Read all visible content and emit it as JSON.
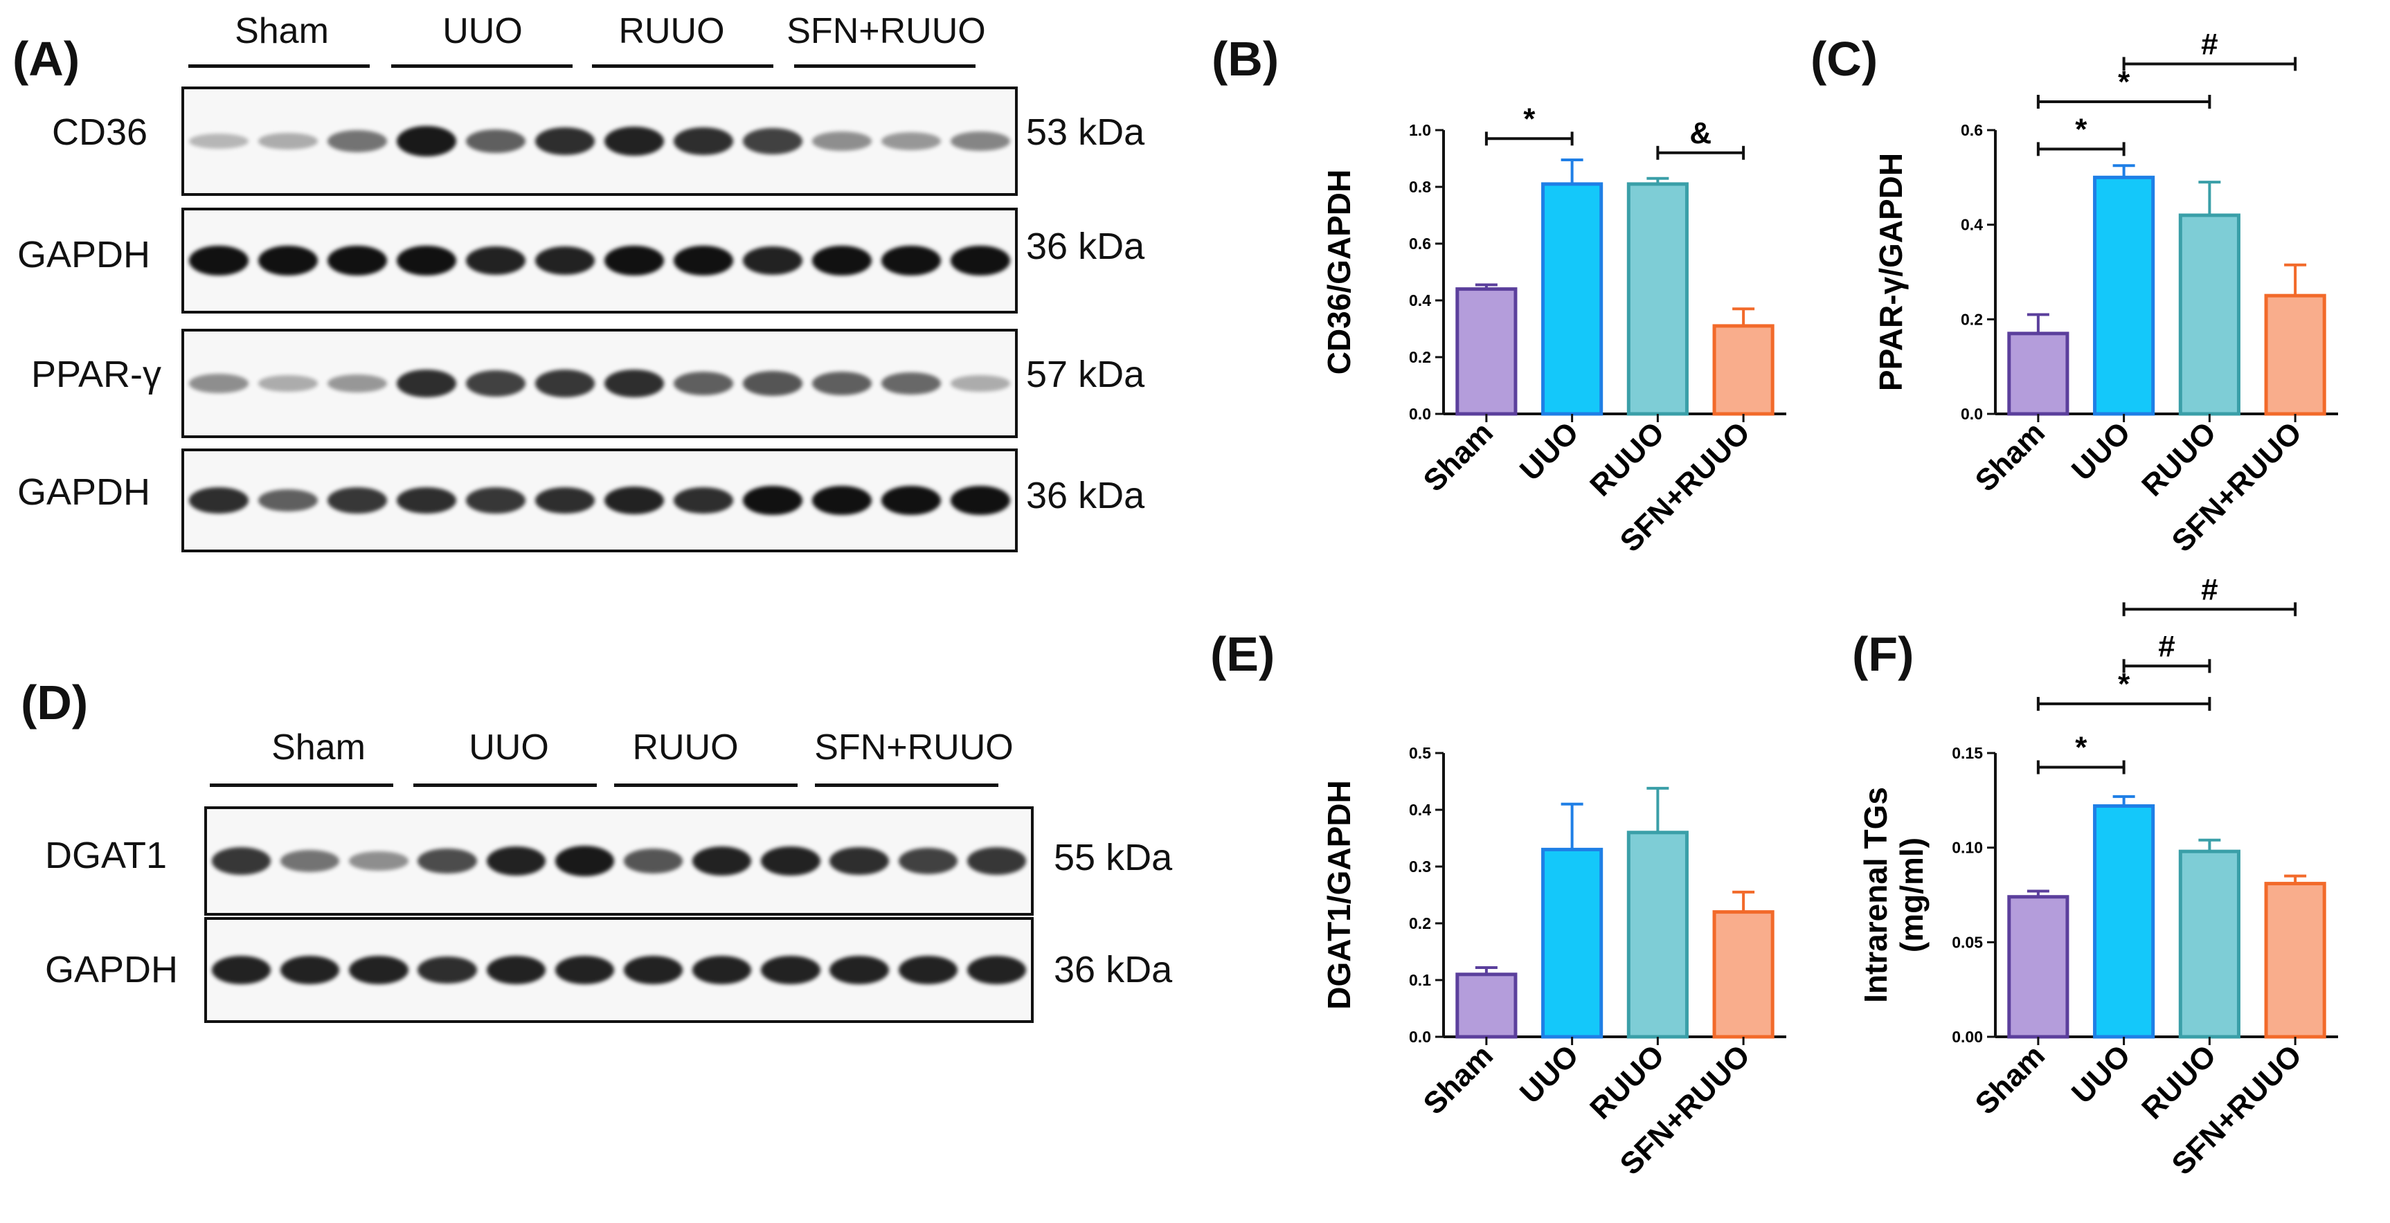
{
  "panels": {
    "A": "(A)",
    "B": "(B)",
    "C": "(C)",
    "D": "(D)",
    "E": "(E)",
    "F": "(F)"
  },
  "groups": [
    "Sham",
    "UUO",
    "RUUO",
    "SFN+RUUO"
  ],
  "blot_A": {
    "rows": [
      {
        "protein": "CD36",
        "kda": "53 kDa",
        "intensity": [
          0.15,
          0.2,
          0.5,
          0.95,
          0.6,
          0.85,
          0.9,
          0.85,
          0.75,
          0.35,
          0.3,
          0.4
        ]
      },
      {
        "protein": "GAPDH",
        "kda": "36 kDa",
        "intensity": [
          1,
          1,
          1,
          1,
          0.9,
          0.9,
          1,
          1,
          0.9,
          1,
          1,
          1
        ]
      },
      {
        "protein": "PPAR-γ",
        "kda": "57 kDa",
        "intensity": [
          0.35,
          0.2,
          0.3,
          0.85,
          0.75,
          0.8,
          0.85,
          0.6,
          0.65,
          0.6,
          0.55,
          0.2
        ]
      },
      {
        "protein": "GAPDH",
        "kda": "36 kDa",
        "intensity": [
          0.85,
          0.6,
          0.8,
          0.85,
          0.8,
          0.85,
          0.9,
          0.85,
          1,
          1,
          1,
          1
        ]
      }
    ]
  },
  "blot_D": {
    "rows": [
      {
        "protein": "DGAT1",
        "kda": "55 kDa",
        "intensity": [
          0.8,
          0.5,
          0.35,
          0.7,
          0.9,
          0.95,
          0.65,
          0.9,
          0.9,
          0.85,
          0.75,
          0.8
        ]
      },
      {
        "protein": "GAPDH",
        "kda": "36 kDa",
        "intensity": [
          0.9,
          0.9,
          0.9,
          0.85,
          0.9,
          0.9,
          0.9,
          0.9,
          0.9,
          0.9,
          0.9,
          0.9
        ]
      }
    ]
  },
  "colors": {
    "fill": [
      "#b49ddb",
      "#14c8fa",
      "#7ecdd6",
      "#f9ad8c"
    ],
    "stroke": [
      "#5b3f9c",
      "#1f7fe6",
      "#3a9fa8",
      "#f26a2a"
    ]
  },
  "chart_data": [
    {
      "id": "B",
      "type": "bar",
      "categories": [
        "Sham",
        "UUO",
        "RUUO",
        "SFN+RUUO"
      ],
      "values": [
        0.44,
        0.81,
        0.81,
        0.31
      ],
      "errors": [
        0.015,
        0.085,
        0.02,
        0.06
      ],
      "ylabel": "CD36/GAPDH",
      "ylim": [
        0,
        1.0
      ],
      "yticks": [
        "0.0",
        "0.2",
        "0.4",
        "0.6",
        "0.8",
        "1.0"
      ],
      "brackets": [
        {
          "from": 0,
          "to": 1,
          "y": 0.97,
          "label": "*"
        },
        {
          "from": 2,
          "to": 3,
          "y": 0.92,
          "label": "&"
        }
      ]
    },
    {
      "id": "C",
      "type": "bar",
      "categories": [
        "Sham",
        "UUO",
        "RUUO",
        "SFN+RUUO"
      ],
      "values": [
        0.17,
        0.5,
        0.42,
        0.25
      ],
      "errors": [
        0.04,
        0.025,
        0.07,
        0.065
      ],
      "ylabel": "PPAR-γ/GAPDH",
      "ylim": [
        0,
        0.6
      ],
      "yticks": [
        "0.0",
        "0.2",
        "0.4",
        "0.6"
      ],
      "brackets": [
        {
          "from": 0,
          "to": 1,
          "y": 0.56,
          "label": "*"
        },
        {
          "from": 0,
          "to": 2,
          "y": 0.66,
          "label": "*"
        },
        {
          "from": 1,
          "to": 3,
          "y": 0.74,
          "label": "#"
        }
      ]
    },
    {
      "id": "E",
      "type": "bar",
      "categories": [
        "Sham",
        "UUO",
        "RUUO",
        "SFN+RUUO"
      ],
      "values": [
        0.11,
        0.33,
        0.36,
        0.22
      ],
      "errors": [
        0.012,
        0.08,
        0.078,
        0.035
      ],
      "ylabel": "DGAT1/GAPDH",
      "ylim": [
        0,
        0.5
      ],
      "yticks": [
        "0.0",
        "0.1",
        "0.2",
        "0.3",
        "0.4",
        "0.5"
      ],
      "brackets": []
    },
    {
      "id": "F",
      "type": "bar",
      "categories": [
        "Sham",
        "UUO",
        "RUUO",
        "SFN+RUUO"
      ],
      "values": [
        0.074,
        0.122,
        0.098,
        0.081
      ],
      "errors": [
        0.003,
        0.005,
        0.006,
        0.004
      ],
      "ylabel": "Intrarenal TGs\n(mg/ml)",
      "ylim": [
        0,
        0.15
      ],
      "yticks": [
        "0.00",
        "0.05",
        "0.10",
        "0.15"
      ],
      "brackets": [
        {
          "from": 0,
          "to": 1,
          "y": 0.1425,
          "label": "*"
        },
        {
          "from": 0,
          "to": 2,
          "y": 0.176,
          "label": "*"
        },
        {
          "from": 1,
          "to": 2,
          "y": 0.196,
          "label": "#"
        },
        {
          "from": 1,
          "to": 3,
          "y": 0.226,
          "label": "#"
        }
      ]
    }
  ]
}
